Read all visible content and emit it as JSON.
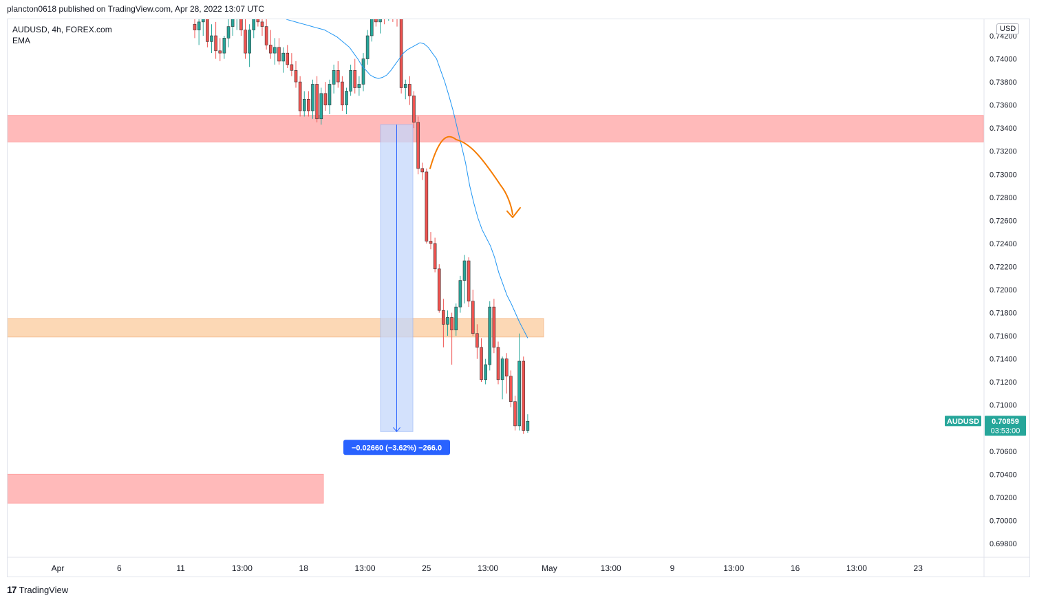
{
  "header": {
    "publisher_line": "plancton0618 published on TradingView.com, Apr 28, 2022 13:07 UTC"
  },
  "legend": {
    "symbol_line": "AUDUSD, 4h, FOREX.com",
    "indicator": "EMA"
  },
  "currency_unit": "USD",
  "footer": {
    "logo_glyph": "17",
    "brand": "TradingView"
  },
  "colors": {
    "up": "#26a69a",
    "down": "#ef5350",
    "ema": "#2196f3",
    "resistance_zone": "#ffb3b3",
    "support_zone": "#fcd4ad",
    "measure_fill": "#c5d7fb",
    "measure_label": "#2962ff",
    "projection": "#f57c00",
    "price_tag": "#26a69a"
  },
  "chart_data": {
    "type": "candlestick",
    "symbol": "AUDUSD",
    "interval": "4h",
    "ylim": [
      0.697,
      0.7435
    ],
    "y_ticks": [
      "0.74200",
      "0.74000",
      "0.73800",
      "0.73600",
      "0.73400",
      "0.73200",
      "0.73000",
      "0.72800",
      "0.72600",
      "0.72400",
      "0.72200",
      "0.72000",
      "0.71800",
      "0.71600",
      "0.71400",
      "0.71200",
      "0.71000",
      "0.70800",
      "0.70600",
      "0.70400",
      "0.70200",
      "0.70000",
      "0.69800"
    ],
    "x_ticks": [
      "Apr",
      "6",
      "11",
      "13:00",
      "18",
      "13:00",
      "25",
      "13:00",
      "May",
      "13:00",
      "9",
      "13:00",
      "16",
      "13:00",
      "23"
    ],
    "zones": [
      {
        "kind": "resistance",
        "from": 0.7328,
        "to": 0.7351
      },
      {
        "kind": "support",
        "from": 0.7159,
        "to": 0.7175
      },
      {
        "kind": "target",
        "from": 0.7015,
        "to": 0.704
      }
    ],
    "measure": {
      "from": 0.7343,
      "to": 0.7077,
      "label": "−0.02660 (−3.62%) −266.0"
    },
    "last_price": {
      "symbol": "AUDUSD",
      "value": "0.70859",
      "countdown": "03:53:00"
    },
    "candles": [
      [
        0.743,
        0.7445,
        0.7418,
        0.7425
      ],
      [
        0.7425,
        0.744,
        0.7412,
        0.7432
      ],
      [
        0.7432,
        0.7448,
        0.742,
        0.744
      ],
      [
        0.744,
        0.745,
        0.741,
        0.7415
      ],
      [
        0.7415,
        0.743,
        0.7405,
        0.742
      ],
      [
        0.742,
        0.7432,
        0.74,
        0.7407
      ],
      [
        0.7407,
        0.7418,
        0.7398,
        0.7405
      ],
      [
        0.7405,
        0.742,
        0.74,
        0.7418
      ],
      [
        0.7418,
        0.7435,
        0.741,
        0.7428
      ],
      [
        0.7428,
        0.744,
        0.742,
        0.7436
      ],
      [
        0.7436,
        0.7448,
        0.7425,
        0.744
      ],
      [
        0.744,
        0.745,
        0.742,
        0.7425
      ],
      [
        0.7425,
        0.7438,
        0.74,
        0.7405
      ],
      [
        0.7405,
        0.743,
        0.7393,
        0.7425
      ],
      [
        0.7425,
        0.7445,
        0.7418,
        0.744
      ],
      [
        0.744,
        0.7448,
        0.7428,
        0.7432
      ],
      [
        0.7432,
        0.744,
        0.742,
        0.7428
      ],
      [
        0.7428,
        0.7436,
        0.7408,
        0.7412
      ],
      [
        0.7412,
        0.7425,
        0.74,
        0.7405
      ],
      [
        0.7405,
        0.7418,
        0.7395,
        0.741
      ],
      [
        0.741,
        0.7418,
        0.7395,
        0.7398
      ],
      [
        0.7398,
        0.741,
        0.7388,
        0.7405
      ],
      [
        0.7405,
        0.7412,
        0.7392,
        0.7395
      ],
      [
        0.7395,
        0.7405,
        0.7385,
        0.739
      ],
      [
        0.739,
        0.7398,
        0.7375,
        0.738
      ],
      [
        0.738,
        0.7385,
        0.735,
        0.7355
      ],
      [
        0.7355,
        0.7372,
        0.735,
        0.7365
      ],
      [
        0.7365,
        0.7372,
        0.735,
        0.7355
      ],
      [
        0.7355,
        0.7382,
        0.7348,
        0.7378
      ],
      [
        0.7378,
        0.7385,
        0.7345,
        0.7348
      ],
      [
        0.7348,
        0.7375,
        0.7343,
        0.737
      ],
      [
        0.737,
        0.738,
        0.7355,
        0.736
      ],
      [
        0.736,
        0.7382,
        0.7352,
        0.7378
      ],
      [
        0.7378,
        0.7395,
        0.737,
        0.739
      ],
      [
        0.739,
        0.7398,
        0.7375,
        0.738
      ],
      [
        0.738,
        0.7385,
        0.7355,
        0.736
      ],
      [
        0.736,
        0.7375,
        0.7352,
        0.7372
      ],
      [
        0.7372,
        0.7395,
        0.7368,
        0.739
      ],
      [
        0.739,
        0.74,
        0.737,
        0.7375
      ],
      [
        0.7375,
        0.7385,
        0.7368,
        0.7378
      ],
      [
        0.7378,
        0.7405,
        0.7372,
        0.74
      ],
      [
        0.74,
        0.7425,
        0.7395,
        0.742
      ],
      [
        0.742,
        0.744,
        0.7415,
        0.7436
      ],
      [
        0.7436,
        0.7448,
        0.7428,
        0.7432
      ],
      [
        0.7432,
        0.7448,
        0.7422,
        0.7445
      ],
      [
        0.7445,
        0.745,
        0.743,
        0.7438
      ],
      [
        0.7438,
        0.745,
        0.7433,
        0.7443
      ],
      [
        0.7443,
        0.7448,
        0.7432,
        0.744
      ],
      [
        0.744,
        0.7447,
        0.7428,
        0.7435
      ],
      [
        0.7435,
        0.744,
        0.737,
        0.7375
      ],
      [
        0.7375,
        0.7382,
        0.7365,
        0.7378
      ],
      [
        0.7378,
        0.7385,
        0.736,
        0.7368
      ],
      [
        0.7368,
        0.7372,
        0.734,
        0.7345
      ],
      [
        0.7345,
        0.735,
        0.73,
        0.7305
      ],
      [
        0.7305,
        0.731,
        0.7295,
        0.7302
      ],
      [
        0.7302,
        0.7305,
        0.724,
        0.7242
      ],
      [
        0.7242,
        0.725,
        0.7235,
        0.724
      ],
      [
        0.724,
        0.7245,
        0.7215,
        0.7218
      ],
      [
        0.7218,
        0.7222,
        0.718,
        0.7182
      ],
      [
        0.7182,
        0.7192,
        0.715,
        0.717
      ],
      [
        0.717,
        0.7182,
        0.716,
        0.7176
      ],
      [
        0.7176,
        0.718,
        0.7135,
        0.7165
      ],
      [
        0.7165,
        0.7188,
        0.716,
        0.7185
      ],
      [
        0.7185,
        0.7212,
        0.718,
        0.7208
      ],
      [
        0.7208,
        0.723,
        0.7188,
        0.7225
      ],
      [
        0.7225,
        0.7228,
        0.7185,
        0.719
      ],
      [
        0.719,
        0.72,
        0.716,
        0.7162
      ],
      [
        0.7162,
        0.717,
        0.714,
        0.715
      ],
      [
        0.715,
        0.7158,
        0.712,
        0.7122
      ],
      [
        0.7122,
        0.714,
        0.7118,
        0.7135
      ],
      [
        0.7135,
        0.719,
        0.713,
        0.7185
      ],
      [
        0.7185,
        0.7192,
        0.7145,
        0.715
      ],
      [
        0.715,
        0.7155,
        0.7118,
        0.7122
      ],
      [
        0.7122,
        0.7142,
        0.7105,
        0.714
      ],
      [
        0.714,
        0.7145,
        0.711,
        0.7125
      ],
      [
        0.7125,
        0.713,
        0.7098,
        0.7103
      ],
      [
        0.7103,
        0.7108,
        0.7078,
        0.7082
      ],
      [
        0.7082,
        0.7162,
        0.7078,
        0.7138
      ],
      [
        0.7138,
        0.7142,
        0.7075,
        0.7078
      ],
      [
        0.7078,
        0.7092,
        0.7076,
        0.7086
      ]
    ],
    "ema": [
      0.7438,
      0.7436,
      0.7434,
      0.7433,
      0.7432,
      0.7431,
      0.743,
      0.7429,
      0.7428,
      0.7427,
      0.7426,
      0.7425,
      0.7423,
      0.7421,
      0.7419,
      0.7416,
      0.7413,
      0.741,
      0.7405,
      0.74,
      0.7394,
      0.739,
      0.7386,
      0.7384,
      0.7383,
      0.7384,
      0.7386,
      0.739,
      0.7395,
      0.74,
      0.7405,
      0.7408,
      0.741,
      0.7412,
      0.7414,
      0.7413,
      0.741,
      0.7405,
      0.74,
      0.739,
      0.738,
      0.7368,
      0.7355,
      0.734,
      0.7325,
      0.731,
      0.729,
      0.7275,
      0.7262,
      0.7252,
      0.7245,
      0.7238,
      0.7228,
      0.7215,
      0.7205,
      0.7195,
      0.7188,
      0.718,
      0.7172,
      0.7165,
      0.7158
    ],
    "projection": [
      [
        0.7305,
        0.7305
      ],
      [
        0.733,
        0.733
      ],
      [
        0.7315,
        0.7315
      ],
      [
        0.729,
        0.729
      ],
      [
        0.7265,
        0.7265
      ]
    ]
  }
}
